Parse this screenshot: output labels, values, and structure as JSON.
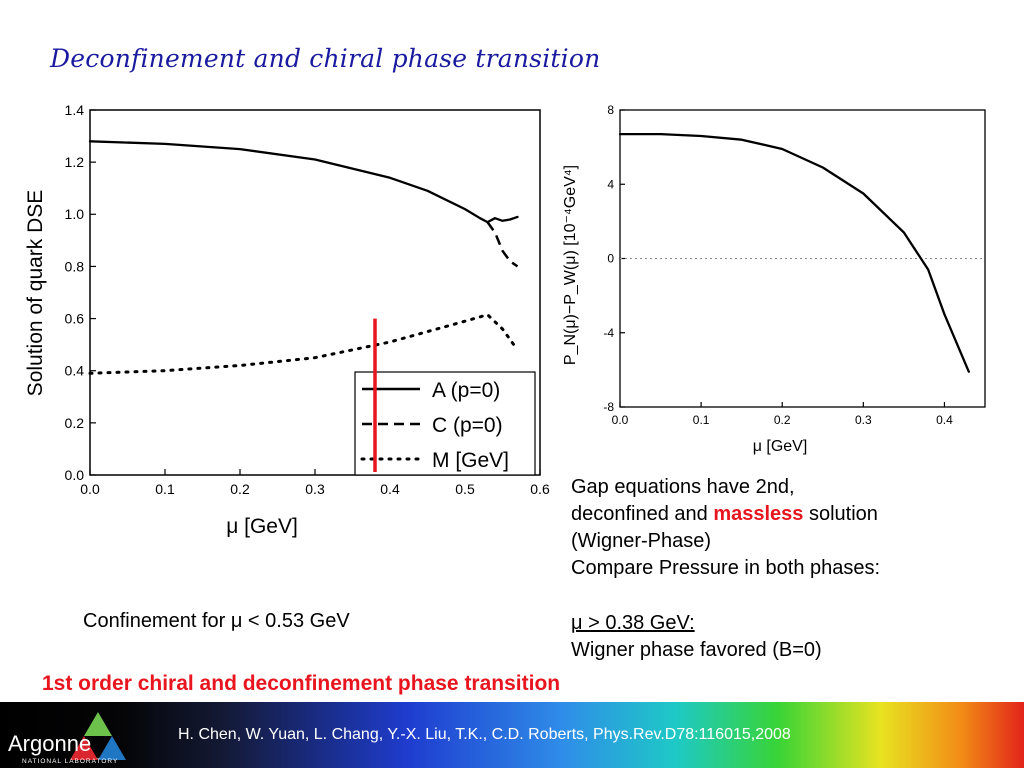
{
  "slide": {
    "title": "Deconfinement and chiral phase transition",
    "gap_text": {
      "line1": "Gap equations have 2nd,",
      "line2_prefix": "deconfined and ",
      "line2_highlight": "massless",
      "line2_suffix": " solution",
      "line3": "(Wigner-Phase)",
      "line4": "Compare Pressure in both phases:"
    },
    "confinement_text": "Confinement for μ < 0.53 GeV",
    "mu_condition": "μ > 0.38 GeV:",
    "wigner_text": "Wigner phase favored (B=0)",
    "headline": "1st order chiral and deconfinement phase transition",
    "citation": "H. Chen, W. Yuan, L. Chang, Y.-X. Liu, T.K., C.D. Roberts, Phys.Rev.D78:116015,2008",
    "logo": {
      "name": "Argonne",
      "sub": "NATIONAL LABORATORY"
    },
    "colors": {
      "title": "#1a1aa0",
      "highlight": "#e8141e",
      "marker": "#e8141e"
    }
  },
  "chart_data": [
    {
      "type": "line",
      "title": "",
      "xlabel": "μ [GeV]",
      "ylabel": "Solution of quark DSE",
      "xlim": [
        0.0,
        0.6
      ],
      "ylim": [
        0.0,
        1.4
      ],
      "xticks": [
        "0.0",
        "0.1",
        "0.2",
        "0.3",
        "0.4",
        "0.5",
        "0.6"
      ],
      "yticks": [
        "0.0",
        "0.2",
        "0.4",
        "0.6",
        "0.8",
        "1.0",
        "1.2",
        "1.4"
      ],
      "legend_position": "bottom-right",
      "vertical_marker": {
        "x": 0.38,
        "color": "#e8141e"
      },
      "series": [
        {
          "name": "A (p=0)",
          "style": "solid",
          "x": [
            0.0,
            0.1,
            0.2,
            0.3,
            0.4,
            0.45,
            0.5,
            0.52,
            0.53,
            0.54,
            0.55,
            0.56,
            0.57
          ],
          "y": [
            1.28,
            1.27,
            1.25,
            1.21,
            1.14,
            1.09,
            1.02,
            0.985,
            0.97,
            0.985,
            0.975,
            0.98,
            0.99
          ]
        },
        {
          "name": "C (p=0)",
          "style": "dashed",
          "x": [
            0.53,
            0.54,
            0.55,
            0.56,
            0.57
          ],
          "y": [
            0.97,
            0.93,
            0.86,
            0.82,
            0.8
          ]
        },
        {
          "name": "M [GeV]",
          "style": "dotted",
          "x": [
            0.0,
            0.1,
            0.2,
            0.3,
            0.4,
            0.45,
            0.5,
            0.53,
            0.55,
            0.57
          ],
          "y": [
            0.39,
            0.4,
            0.42,
            0.45,
            0.51,
            0.55,
            0.59,
            0.615,
            0.56,
            0.48
          ]
        }
      ]
    },
    {
      "type": "line",
      "title": "",
      "xlabel": "μ [GeV]",
      "ylabel": "P_N(μ)−P_W(μ) [10⁻⁴GeV⁴]",
      "xlim": [
        0.0,
        0.45
      ],
      "ylim": [
        -8,
        8
      ],
      "xticks": [
        "0.0",
        "0.1",
        "0.2",
        "0.3",
        "0.4"
      ],
      "yticks": [
        "-8",
        "-4",
        "0",
        "4",
        "8"
      ],
      "reference_line": {
        "y": 0,
        "style": "dotted"
      },
      "series": [
        {
          "name": "",
          "style": "solid",
          "x": [
            0.0,
            0.05,
            0.1,
            0.15,
            0.2,
            0.25,
            0.3,
            0.35,
            0.38,
            0.4,
            0.43
          ],
          "y": [
            6.7,
            6.7,
            6.6,
            6.4,
            5.9,
            4.9,
            3.5,
            1.4,
            -0.6,
            -3.0,
            -6.1
          ]
        }
      ]
    }
  ]
}
